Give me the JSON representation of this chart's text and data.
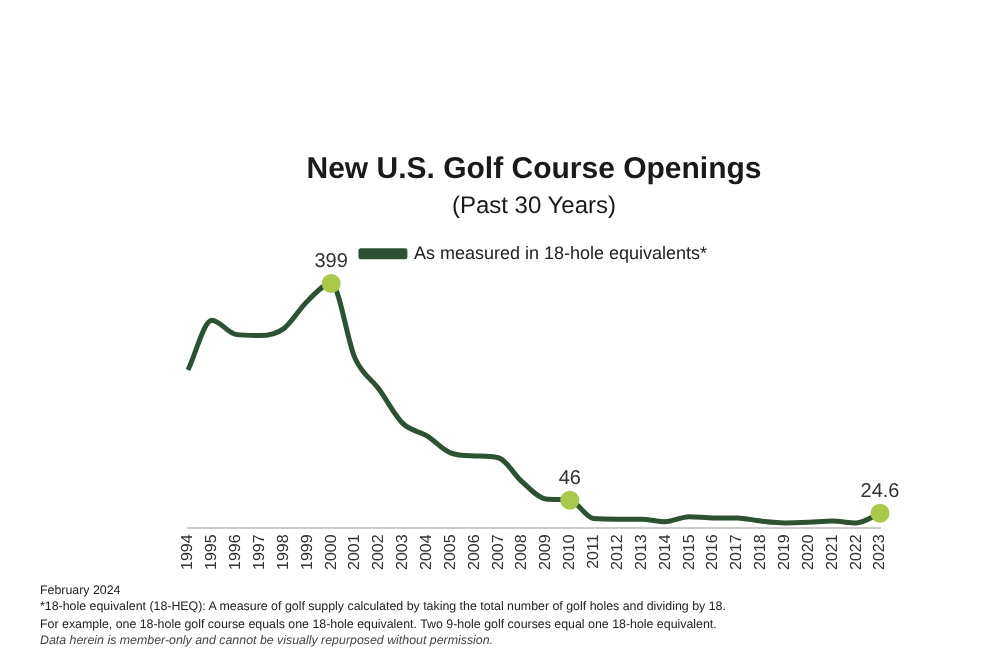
{
  "chart_data": {
    "type": "line",
    "title": "New U.S. Golf Course Openings",
    "subtitle": "(Past 30 Years)",
    "categories": [
      "1994",
      "1995",
      "1996",
      "1997",
      "1998",
      "1999",
      "2000",
      "2001",
      "2002",
      "2003",
      "2004",
      "2005",
      "2006",
      "2007",
      "2008",
      "2009",
      "2010",
      "2011",
      "2012",
      "2013",
      "2014",
      "2015",
      "2016",
      "2017",
      "2018",
      "2019",
      "2020",
      "2021",
      "2022",
      "2023"
    ],
    "series": [
      {
        "name": "As measured in 18-hole equivalents*",
        "color": "#2d5233",
        "values": [
          258,
          339,
          316,
          314,
          325,
          370,
          399,
          277,
          227,
          171,
          151,
          123,
          118,
          115,
          76,
          48,
          46,
          16,
          15,
          15,
          11,
          19,
          17,
          17,
          12,
          9,
          10,
          12,
          9,
          24.6
        ],
        "value_labels": [
          null,
          null,
          null,
          null,
          null,
          null,
          "399",
          null,
          null,
          null,
          null,
          null,
          null,
          null,
          null,
          null,
          "46",
          null,
          null,
          null,
          null,
          null,
          null,
          null,
          null,
          null,
          null,
          null,
          null,
          "24.6"
        ]
      }
    ],
    "tick_labels": "x",
    "grid": false,
    "legend": "top",
    "line_style": "solid",
    "annotations": [
      "February 2024",
      "*18-hole equivalent (18-HEQ): A measure of golf supply calculated by taking the total number of golf holes and dividing by 18.",
      "For example, one 18-hole golf course equals one 18-hole equivalent. Two 9-hole golf courses equal one 18-hole equivalent.",
      "Data herein is member-only and cannot be visually repurposed without permission."
    ]
  }
}
